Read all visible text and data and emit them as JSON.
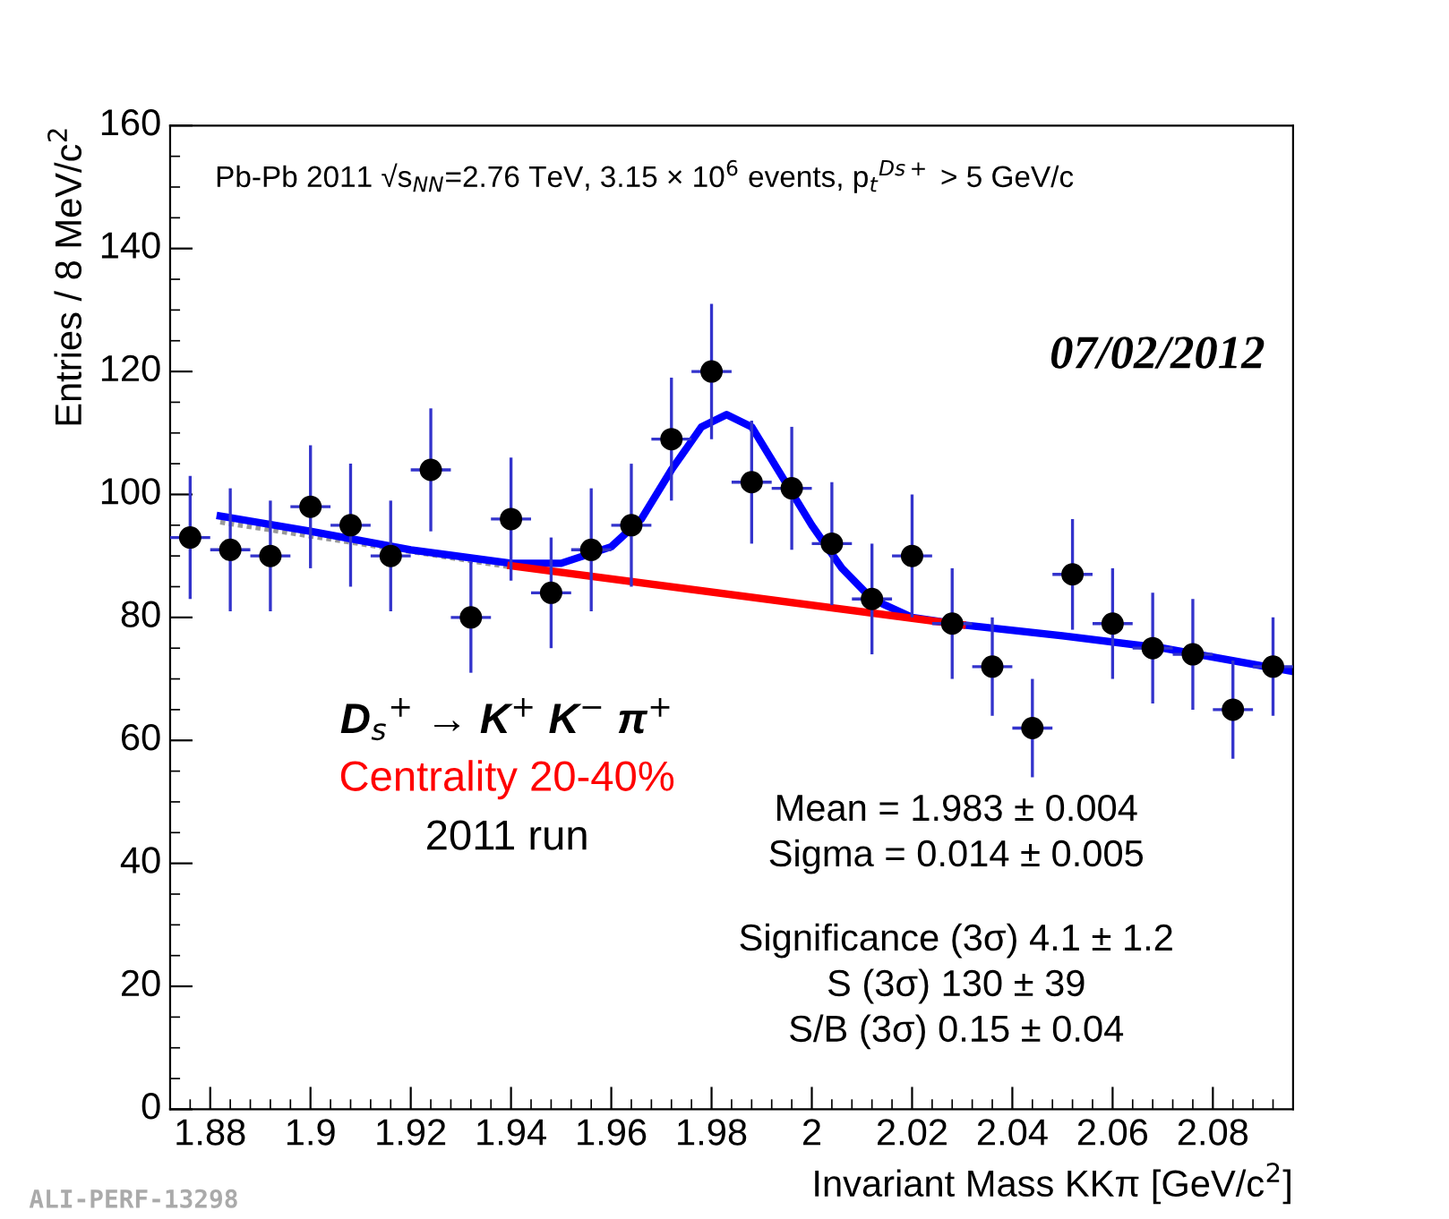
{
  "chart_data": {
    "type": "scatter",
    "xlabel": "Invariant Mass KKπ [GeV/c$^{2}$]",
    "ylabel": "Entries / 8 MeV/c$^{2}$",
    "xlim": [
      1.872,
      2.096
    ],
    "xticks": [
      1.88,
      1.9,
      1.92,
      1.94,
      1.96,
      1.98,
      2,
      2.02,
      2.04,
      2.06,
      2.08
    ],
    "ylim": [
      0,
      160
    ],
    "yticks": [
      0,
      20,
      40,
      60,
      80,
      100,
      120,
      140,
      160
    ],
    "grid": false,
    "legend": false,
    "series": [
      {
        "type": "scatter",
        "color": "#000000",
        "marker": "circle",
        "x": [
          1.876,
          1.884,
          1.892,
          1.9,
          1.908,
          1.916,
          1.924,
          1.932,
          1.94,
          1.948,
          1.956,
          1.964,
          1.972,
          1.98,
          1.988,
          1.996,
          2.004,
          2.012,
          2.02,
          2.028,
          2.036,
          2.044,
          2.052,
          2.06,
          2.068,
          2.076,
          2.084,
          2.092
        ],
        "values": [
          93,
          91,
          90,
          98,
          95,
          90,
          104,
          80,
          96,
          84,
          91,
          95,
          109,
          120,
          102,
          101,
          92,
          83,
          90,
          79,
          72,
          62,
          87,
          79,
          75,
          74,
          65,
          72
        ],
        "errors": [
          10,
          10,
          9,
          10,
          10,
          9,
          10,
          9,
          10,
          9,
          10,
          10,
          10,
          11,
          10,
          10,
          10,
          9,
          10,
          9,
          8,
          8,
          9,
          9,
          9,
          9,
          8,
          8
        ],
        "xerrors": [
          0.004,
          0.004,
          0.004,
          0.004,
          0.004,
          0.004,
          0.004,
          0.004,
          0.004,
          0.004,
          0.004,
          0.004,
          0.004,
          0.004,
          0.004,
          0.004,
          0.004,
          0.004,
          0.004,
          0.004,
          0.004,
          0.004,
          0.004,
          0.004,
          0.004,
          0.004,
          0.004,
          0.004
        ]
      },
      {
        "type": "line",
        "color": "#999999",
        "line_style": "dotted",
        "marker": "none",
        "x": [
          1.882,
          1.94
        ],
        "values": [
          95.5,
          88.2
        ]
      },
      {
        "type": "line",
        "color": "#0000ff",
        "line_style": "solid",
        "marker": "none",
        "x": [
          1.882,
          1.9,
          1.92,
          1.94,
          1.95,
          1.96,
          1.966,
          1.972,
          1.978,
          1.983,
          1.988,
          1.994,
          2.0,
          2.006,
          2.012,
          2.02,
          2.03,
          2.05,
          2.07,
          2.096
        ],
        "values": [
          96.5,
          94,
          91,
          88.8,
          88.8,
          91.5,
          96,
          104,
          111,
          113,
          111,
          103,
          95,
          88,
          83,
          80,
          78.8,
          77,
          75,
          71.2
        ]
      },
      {
        "type": "line",
        "color": "#ff0000",
        "line_style": "solid",
        "marker": "none",
        "x": [
          1.94,
          2.03
        ],
        "values": [
          88.4,
          78.8
        ]
      }
    ],
    "annotations": [
      "Pb-Pb 2011 √s$_{NN}$=2.76 TeV, 3.15 × 10$^{6}$ events, p$_{t}$$^{Ds+}$ > 5 GeV/c",
      "07/02/2012",
      "D$_{s}$$^{+}$ → K$^{+}$ K$^{−}$ π$^{+}$",
      "Centrality 20-40%",
      "2011 run",
      "Mean = 1.983 ± 0.004\nSigma = 0.014 ± 0.005",
      "Significance (3σ) 4.1 ± 1.2\nS (3σ) 130 ± 39\nS/B (3σ) 0.15 ± 0.04",
      "ALI-PERF-13298"
    ]
  }
}
